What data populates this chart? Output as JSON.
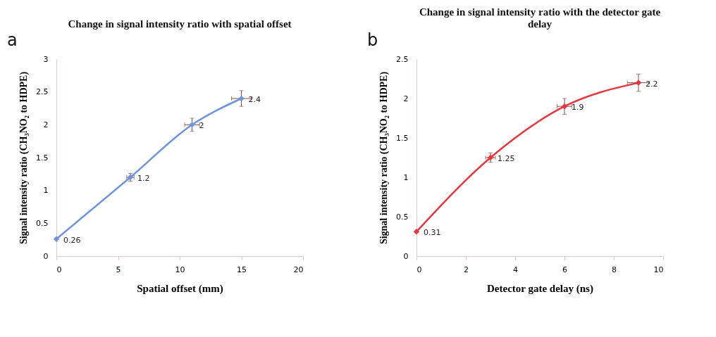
{
  "chart_data": [
    {
      "type": "line",
      "title": "Change in signal intensity ratio with spatial offset",
      "xlabel": "Spatial offset (mm)",
      "ylabel": "Signal intensity ratio (CH₃NO₂ to  HDPE)",
      "annotations": [
        "a"
      ],
      "x": [
        0,
        6,
        11,
        15
      ],
      "series": [
        {
          "color": "#6f94dc",
          "values": [
            0.26,
            1.2,
            2,
            2.4
          ],
          "errors": [
            null,
            0.06,
            0.1,
            0.12
          ],
          "xerrors": [
            null,
            0.3,
            0.6,
            0.8
          ]
        }
      ],
      "xlim": [
        0,
        20
      ],
      "xticks": [
        0,
        5,
        10,
        15,
        20
      ],
      "ylim": [
        0,
        3
      ],
      "yticks": [
        0,
        0.5,
        1,
        1.5,
        2,
        2.5,
        3
      ],
      "data_labels": true,
      "marker": "diamond",
      "grid": false
    },
    {
      "type": "line",
      "title": "Change in signal intensity ratio with the detector gate delay",
      "xlabel": "Detector gate delay (ns)",
      "ylabel": "Signal intensity ratio (CH₃NO₂ to  HDPE)",
      "annotations": [
        "b"
      ],
      "x": [
        0,
        3,
        6,
        9
      ],
      "series": [
        {
          "color": "#e8363e",
          "values": [
            0.31,
            1.25,
            1.9,
            2.2
          ],
          "errors": [
            null,
            0.06,
            0.1,
            0.11
          ],
          "xerrors": [
            null,
            0.2,
            0.3,
            0.45
          ]
        }
      ],
      "xlim": [
        0,
        10
      ],
      "xticks": [
        0,
        2,
        4,
        6,
        8,
        10
      ],
      "ylim": [
        0,
        2.5
      ],
      "yticks": [
        0,
        0.5,
        1,
        1.5,
        2,
        2.5
      ],
      "data_labels": true,
      "marker": "diamond",
      "grid": false
    }
  ]
}
